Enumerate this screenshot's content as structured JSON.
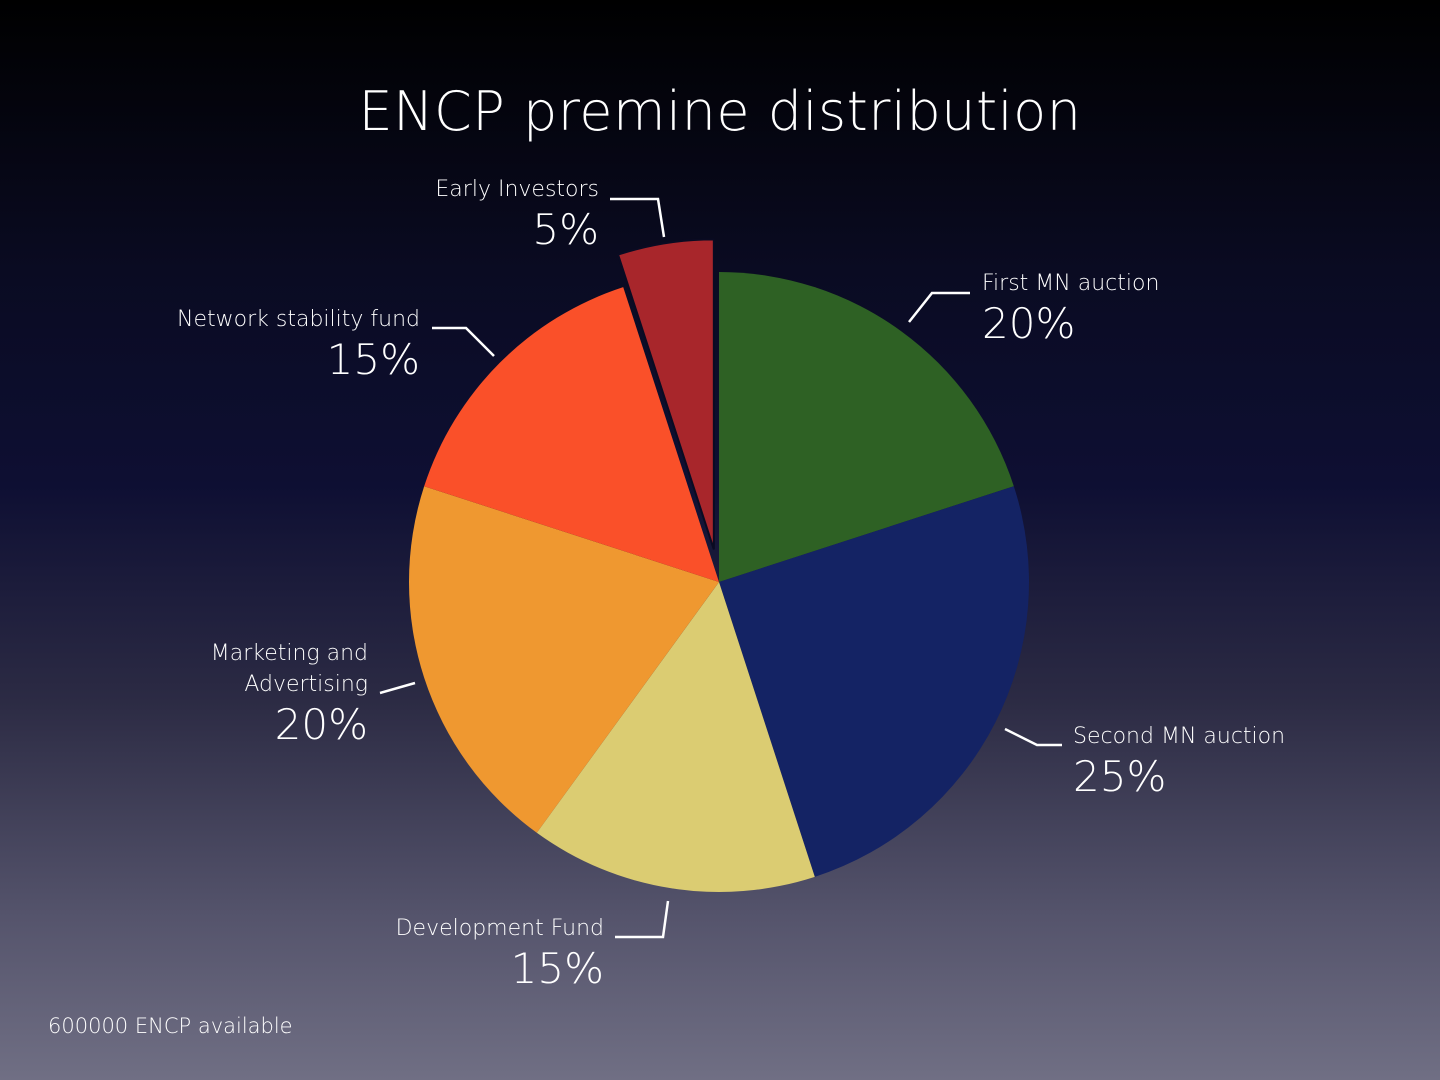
{
  "chart_data": {
    "type": "pie",
    "title": "ENCP premine distribution",
    "slices": [
      {
        "label": "First MN auction",
        "label_lines": [
          "First MN auction"
        ],
        "value": 20,
        "display": "20%",
        "color": "#2e6124",
        "exploded": false
      },
      {
        "label": "Second MN auction",
        "label_lines": [
          "Second MN auction"
        ],
        "value": 25,
        "display": "25%",
        "color": "#142364",
        "exploded": false
      },
      {
        "label": "Development Fund",
        "label_lines": [
          "Development Fund"
        ],
        "value": 15,
        "display": "15%",
        "color": "#dbcc72",
        "exploded": false
      },
      {
        "label": "Marketing and Advertising",
        "label_lines": [
          "Marketing and",
          "Advertising"
        ],
        "value": 20,
        "display": "20%",
        "color": "#ef9830",
        "exploded": false
      },
      {
        "label": "Network stability fund",
        "label_lines": [
          "Network stability fund"
        ],
        "value": 15,
        "display": "15%",
        "color": "#fa5029",
        "exploded": false
      },
      {
        "label": "Early Investors",
        "label_lines": [
          "Early Investors"
        ],
        "value": 5,
        "display": "5%",
        "color": "#a8262b",
        "exploded": true
      }
    ]
  },
  "footer": {
    "text": "600000 ENCP available"
  }
}
